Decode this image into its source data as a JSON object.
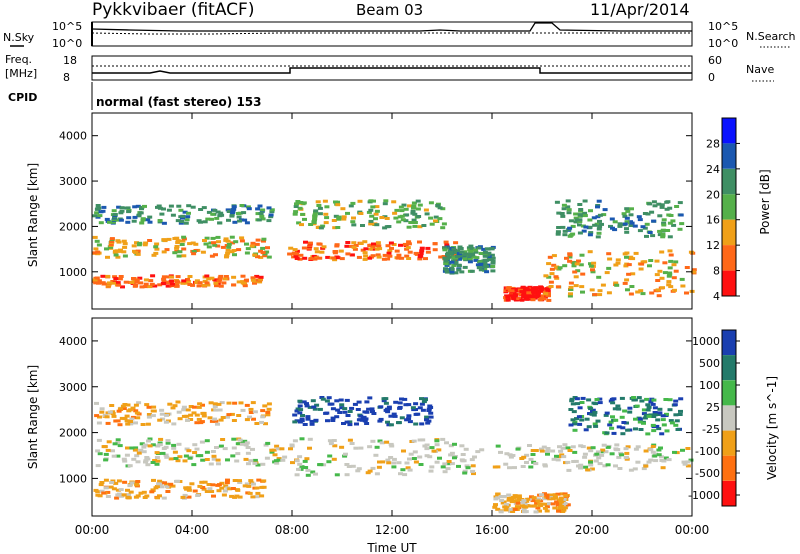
{
  "header": {
    "station": "Pykkvibaer (fitACF)",
    "beam": "Beam 03",
    "date": "11/Apr/2014"
  },
  "panel_labels": {
    "nsky": "N.Sky",
    "freq_line1": "Freq.",
    "freq_line2": "[MHz]",
    "cpid": "CPID",
    "nsearch": "N.Search",
    "nave": "Nave",
    "cpid_text": "normal (fast stereo) 153",
    "nsky_ticks": [
      "10^5",
      "10^0"
    ],
    "freq_ticks": [
      "18",
      "8"
    ],
    "nsearch_ticks": [
      "10^5",
      "10^0"
    ],
    "nave_ticks": [
      "60",
      "0"
    ]
  },
  "chart_data": [
    {
      "type": "heatmap",
      "title": "",
      "xlabel": "",
      "ylabel": "Slant Range [km]",
      "xlim": [
        0,
        24
      ],
      "ylim": [
        180,
        4500
      ],
      "y_ticks": [
        "4000",
        "3000",
        "2000",
        "1000"
      ],
      "colorbar": {
        "label": "Power [dB]",
        "ticks": [
          "28",
          "24",
          "20",
          "16",
          "12",
          "8",
          "4"
        ],
        "colors": [
          "#0a12ff",
          "#1b58b0",
          "#3f8f64",
          "#55b04a",
          "#f0a018",
          "#ff6818",
          "#ff1010"
        ]
      },
      "bands": [
        {
          "t0": 0.0,
          "t1": 6.7,
          "r0": 700,
          "r1": 950,
          "level": 5
        },
        {
          "t0": 0.0,
          "t1": 7.0,
          "r0": 1350,
          "r1": 1800,
          "level": 4
        },
        {
          "t0": 0.0,
          "t1": 7.2,
          "r0": 2100,
          "r1": 2500,
          "level": 2
        },
        {
          "t0": 7.8,
          "t1": 14.5,
          "r0": 1300,
          "r1": 1700,
          "level": 5
        },
        {
          "t0": 8.0,
          "t1": 14.0,
          "r0": 2000,
          "r1": 2600,
          "level": 3
        },
        {
          "t0": 14.0,
          "t1": 16.0,
          "r0": 1000,
          "r1": 1600,
          "level": 2
        },
        {
          "t0": 16.4,
          "t1": 18.2,
          "r0": 400,
          "r1": 700,
          "level": 6
        },
        {
          "t0": 18.0,
          "t1": 24.0,
          "r0": 500,
          "r1": 1500,
          "level": 4
        },
        {
          "t0": 18.5,
          "t1": 23.5,
          "r0": 1800,
          "r1": 2600,
          "level": 2
        }
      ]
    },
    {
      "type": "heatmap",
      "title": "",
      "xlabel": "Time UT",
      "ylabel": "Slant Range [km]",
      "xlim": [
        0,
        24
      ],
      "ylim": [
        180,
        4500
      ],
      "x_ticks": [
        "00:00",
        "04:00",
        "08:00",
        "12:00",
        "16:00",
        "20:00",
        "00:00"
      ],
      "y_ticks": [
        "4000",
        "3000",
        "2000",
        "1000"
      ],
      "colorbar": {
        "label": "Velocity [m s^-1]",
        "ticks": [
          "1000",
          "500",
          "100",
          "25",
          "-25",
          "-100",
          "-500",
          "-1000"
        ],
        "colors": [
          "#1a3fb0",
          "#237a6a",
          "#45b84a",
          "#c8c8c0",
          "#f0a018",
          "#ff7010",
          "#ff1010"
        ]
      },
      "bands": [
        {
          "t0": 0.0,
          "t1": 6.8,
          "r0": 600,
          "r1": 1000,
          "level": 4
        },
        {
          "t0": 0.0,
          "t1": 7.5,
          "r0": 1300,
          "r1": 1900,
          "level": 3
        },
        {
          "t0": 0.0,
          "t1": 7.0,
          "r0": 2200,
          "r1": 2700,
          "level": 4
        },
        {
          "t0": 7.5,
          "t1": 15.5,
          "r0": 1100,
          "r1": 1900,
          "level": 3
        },
        {
          "t0": 8.0,
          "t1": 13.5,
          "r0": 2200,
          "r1": 2800,
          "level": 0
        },
        {
          "t0": 16.0,
          "t1": 19.0,
          "r0": 300,
          "r1": 700,
          "level": 4
        },
        {
          "t0": 16.0,
          "t1": 24.0,
          "r0": 1200,
          "r1": 1800,
          "level": 3
        },
        {
          "t0": 19.0,
          "t1": 23.5,
          "r0": 2000,
          "r1": 2800,
          "level": 1
        }
      ]
    }
  ]
}
